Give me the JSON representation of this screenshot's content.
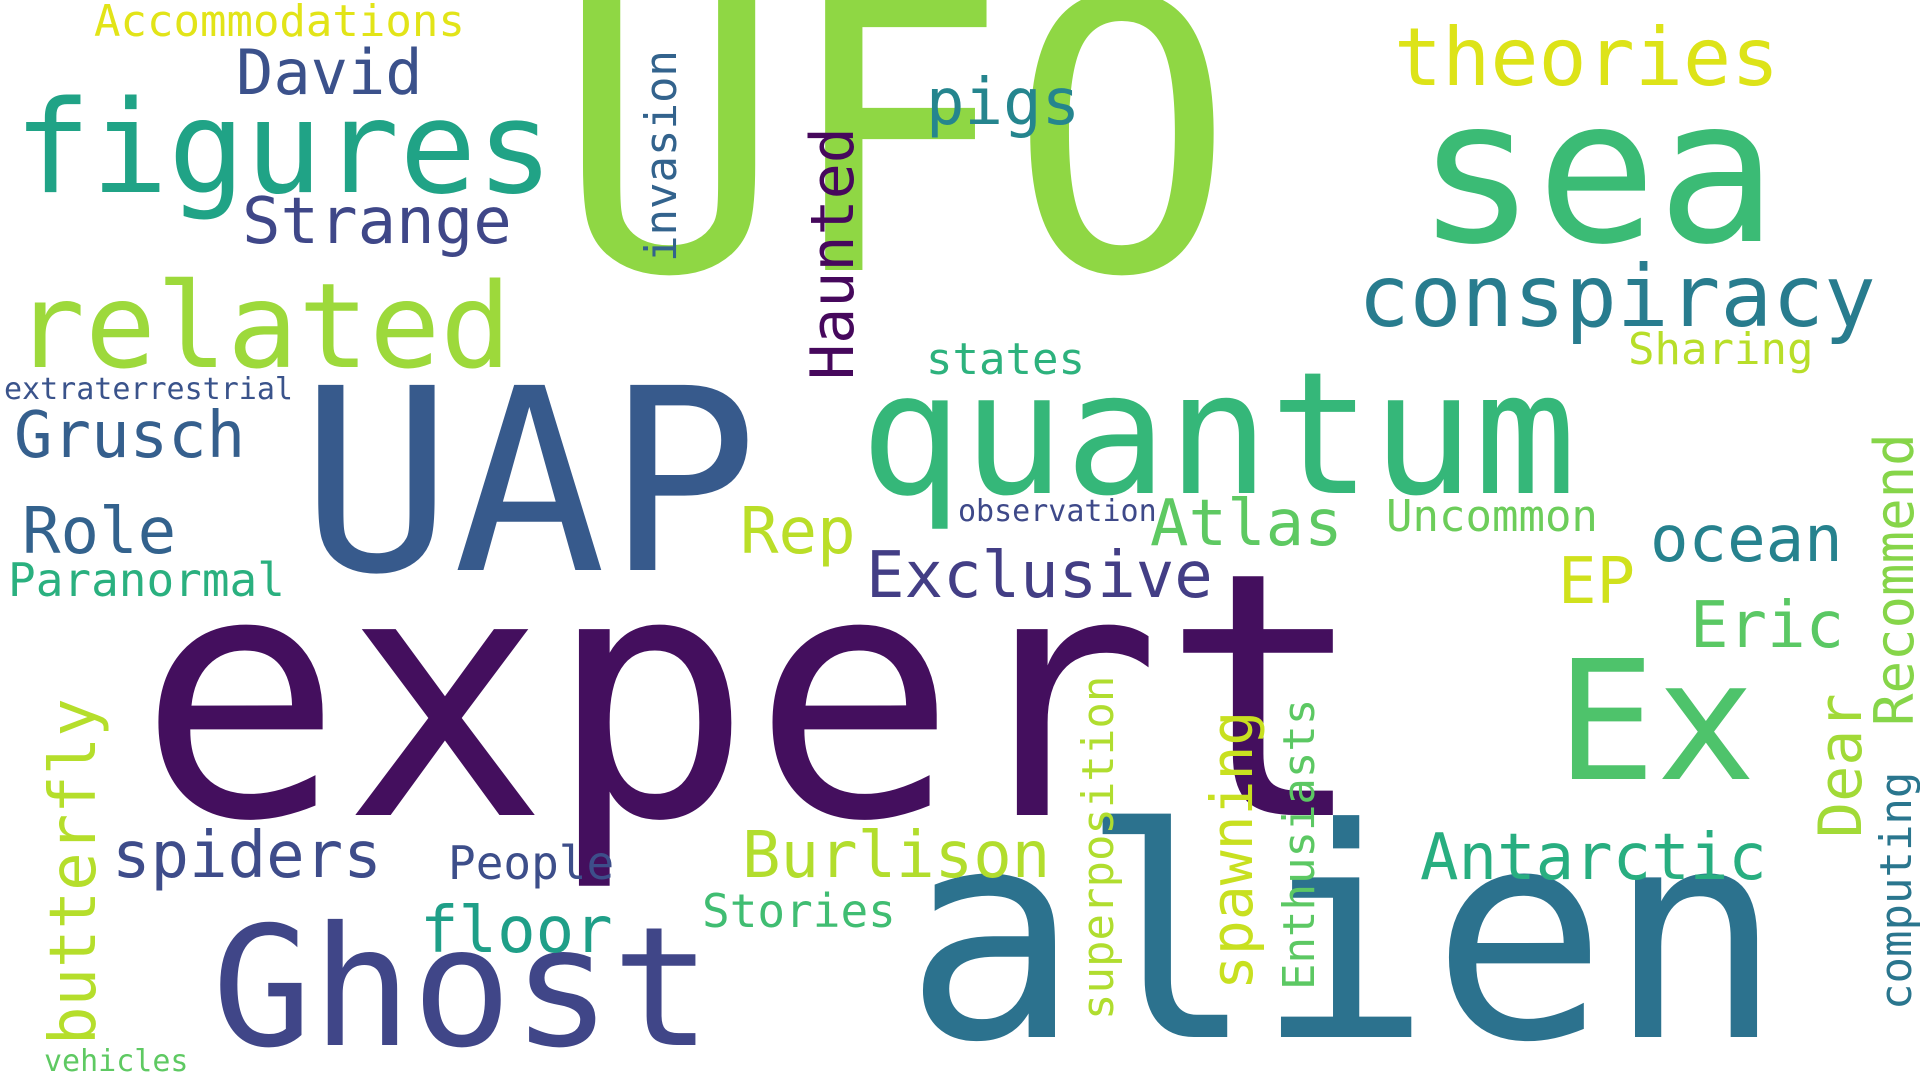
{
  "words": [
    {
      "text": "UFO",
      "color": "#8fd744"
    },
    {
      "text": "expert",
      "color": "#440f5e"
    },
    {
      "text": "alien",
      "color": "#2c728e"
    },
    {
      "text": "UAP",
      "color": "#375a8c"
    },
    {
      "text": "quantum",
      "color": "#35b779"
    },
    {
      "text": "sea",
      "color": "#3bbb75"
    },
    {
      "text": "Ghost",
      "color": "#404688"
    },
    {
      "text": "Ex",
      "color": "#4ec36b"
    },
    {
      "text": "figures",
      "color": "#20a386"
    },
    {
      "text": "related",
      "color": "#9dd93b"
    },
    {
      "text": "conspiracy",
      "color": "#287c8e"
    },
    {
      "text": "theories",
      "color": "#dde318"
    },
    {
      "text": "Haunted",
      "color": "#46085c"
    },
    {
      "text": "Strange",
      "color": "#3f4788"
    },
    {
      "text": "David",
      "color": "#3b518b"
    },
    {
      "text": "pigs",
      "color": "#25858e"
    },
    {
      "text": "invasion",
      "color": "#33638d"
    },
    {
      "text": "Accommodations",
      "color": "#e2e418"
    },
    {
      "text": "Grusch",
      "color": "#355f8d"
    },
    {
      "text": "Role",
      "color": "#33628d"
    },
    {
      "text": "Paranormal",
      "color": "#2ab07f"
    },
    {
      "text": "extraterrestrial",
      "color": "#3a538b"
    },
    {
      "text": "states",
      "color": "#2db27d"
    },
    {
      "text": "Sharing",
      "color": "#b8de29"
    },
    {
      "text": "Recommend",
      "color": "#86d549"
    },
    {
      "text": "Atlas",
      "color": "#5ec962"
    },
    {
      "text": "Uncommon",
      "color": "#6ccd5a"
    },
    {
      "text": "observation",
      "color": "#3e4989"
    },
    {
      "text": "Rep",
      "color": "#bade28"
    },
    {
      "text": "Exclusive",
      "color": "#433e85"
    },
    {
      "text": "ocean",
      "color": "#26828e"
    },
    {
      "text": "EP",
      "color": "#d0e11c"
    },
    {
      "text": "Eric",
      "color": "#5ac864"
    },
    {
      "text": "Dear",
      "color": "#a2da37"
    },
    {
      "text": "butterfly",
      "color": "#b5de2b"
    },
    {
      "text": "spiders",
      "color": "#3e4c8a"
    },
    {
      "text": "People",
      "color": "#3d4e8a"
    },
    {
      "text": "Burlison",
      "color": "#b2dd2d"
    },
    {
      "text": "superposition",
      "color": "#b0dd2f"
    },
    {
      "text": "spawning",
      "color": "#c8e020"
    },
    {
      "text": "Enthusiasts",
      "color": "#5cc863"
    },
    {
      "text": "Antarctic",
      "color": "#28ae80"
    },
    {
      "text": "floor",
      "color": "#1f9f88"
    },
    {
      "text": "Stories",
      "color": "#40bd72"
    },
    {
      "text": "computing",
      "color": "#2a768e"
    },
    {
      "text": "vehicles",
      "color": "#5ec962"
    }
  ]
}
